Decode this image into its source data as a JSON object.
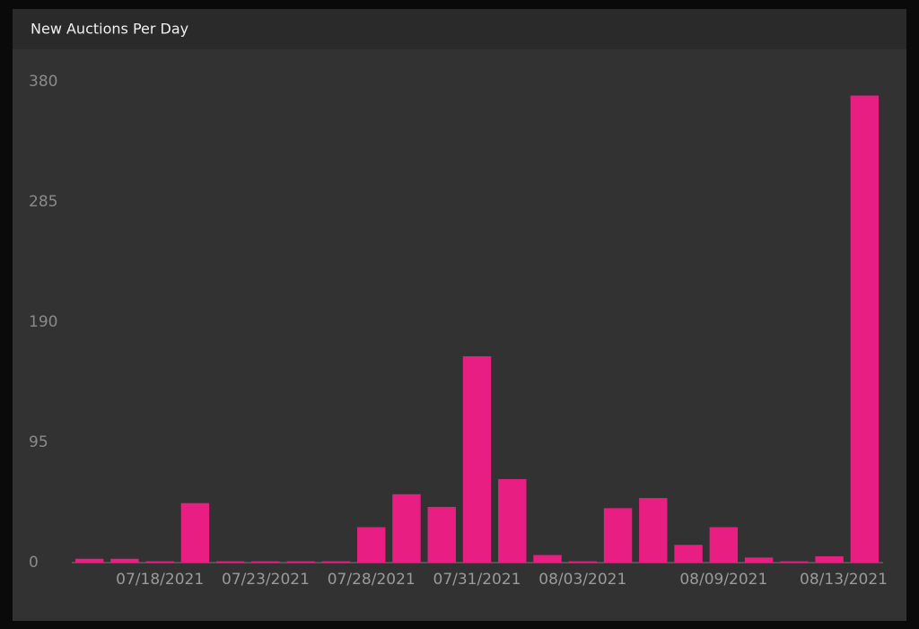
{
  "chart_data": {
    "type": "bar",
    "title": "New Auctions Per Day",
    "categories": [
      null,
      null,
      "07/18/2021",
      null,
      null,
      "07/23/2021",
      null,
      null,
      "07/28/2021",
      null,
      null,
      "07/31/2021",
      null,
      null,
      "08/03/2021",
      null,
      null,
      null,
      "08/09/2021",
      null,
      null,
      null,
      "08/13/2021"
    ],
    "values": [
      3,
      3,
      1,
      47,
      1,
      1,
      1,
      1,
      28,
      54,
      44,
      163,
      66,
      6,
      1,
      43,
      51,
      14,
      28,
      4,
      1,
      5,
      369
    ],
    "color": "#e91e82",
    "ylim": [
      0,
      380
    ],
    "yticks": [
      0,
      95,
      190,
      285,
      380
    ],
    "grid": false
  }
}
